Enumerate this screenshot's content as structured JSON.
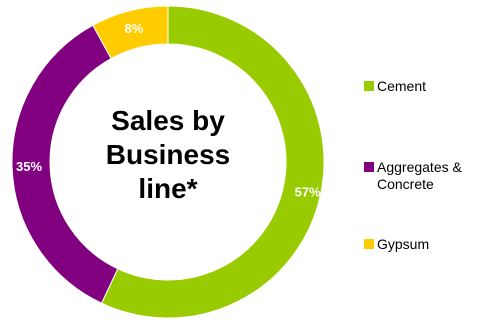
{
  "chart_data": {
    "type": "pie",
    "style": "donut",
    "title_lines": [
      "Sales by",
      "Business",
      "line*"
    ],
    "categories": [
      "Cement",
      "Aggregates &\nConcrete",
      "Gypsum"
    ],
    "values": [
      57,
      35,
      8
    ],
    "labels": [
      "57%",
      "35%",
      "8%"
    ],
    "colors": [
      "#99cc00",
      "#800080",
      "#ffcc00"
    ],
    "legend_placement": "right"
  }
}
